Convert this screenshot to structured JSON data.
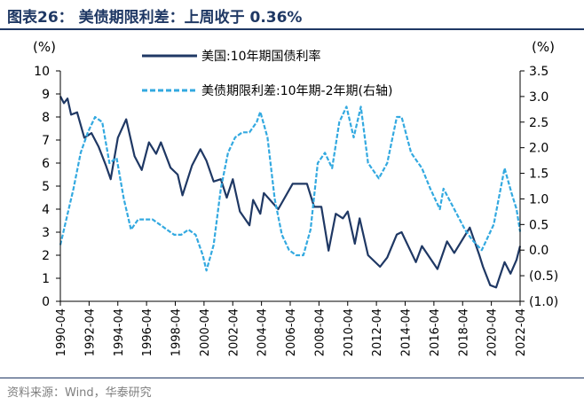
{
  "figure": {
    "title": "图表26： 美债期限利差：上周收于 0.36%",
    "source": "资料来源：Wind，华泰研究"
  },
  "chart_data": {
    "type": "line",
    "left_unit": "(%)",
    "right_unit": "(%)",
    "left_axis": {
      "min": 0,
      "max": 10,
      "ticks": [
        "0",
        "1",
        "2",
        "3",
        "4",
        "5",
        "6",
        "7",
        "8",
        "9",
        "10"
      ]
    },
    "right_axis": {
      "min": -1.0,
      "max": 3.5,
      "ticks": [
        "(1.0)",
        "(0.5)",
        "0.0",
        "0.5",
        "1.0",
        "1.5",
        "2.0",
        "2.5",
        "3.0",
        "3.5"
      ]
    },
    "x_ticks": [
      "1990-04",
      "1992-04",
      "1994-04",
      "1996-04",
      "1998-04",
      "2000-04",
      "2002-04",
      "2004-04",
      "2006-04",
      "2008-04",
      "2010-04",
      "2012-04",
      "2014-04",
      "2016-04",
      "2018-04",
      "2020-04",
      "2022-04"
    ],
    "x_range": [
      "1990-04",
      "2022-04"
    ],
    "legend": "top",
    "series": [
      {
        "name": "美国:10年期国债利率",
        "axis": "left",
        "color": "#1f3864",
        "style": "solid",
        "points": [
          [
            "1990-04",
            8.9
          ],
          [
            "1990-07",
            8.6
          ],
          [
            "1990-10",
            8.8
          ],
          [
            "1991-01",
            8.1
          ],
          [
            "1991-06",
            8.2
          ],
          [
            "1991-12",
            7.1
          ],
          [
            "1992-06",
            7.3
          ],
          [
            "1992-12",
            6.7
          ],
          [
            "1993-06",
            5.9
          ],
          [
            "1993-10",
            5.3
          ],
          [
            "1994-04",
            7.1
          ],
          [
            "1994-11",
            7.9
          ],
          [
            "1995-06",
            6.3
          ],
          [
            "1995-12",
            5.7
          ],
          [
            "1996-06",
            6.9
          ],
          [
            "1996-12",
            6.4
          ],
          [
            "1997-04",
            6.9
          ],
          [
            "1997-12",
            5.8
          ],
          [
            "1998-06",
            5.5
          ],
          [
            "1998-10",
            4.6
          ],
          [
            "1999-06",
            5.9
          ],
          [
            "2000-01",
            6.6
          ],
          [
            "2000-06",
            6.1
          ],
          [
            "2000-12",
            5.2
          ],
          [
            "2001-06",
            5.3
          ],
          [
            "2001-11",
            4.5
          ],
          [
            "2002-04",
            5.3
          ],
          [
            "2002-10",
            3.9
          ],
          [
            "2003-06",
            3.3
          ],
          [
            "2003-09",
            4.4
          ],
          [
            "2004-03",
            3.8
          ],
          [
            "2004-06",
            4.7
          ],
          [
            "2005-06",
            4.0
          ],
          [
            "2006-06",
            5.1
          ],
          [
            "2007-06",
            5.1
          ],
          [
            "2007-12",
            4.1
          ],
          [
            "2008-06",
            4.1
          ],
          [
            "2008-12",
            2.2
          ],
          [
            "2009-06",
            3.8
          ],
          [
            "2009-12",
            3.6
          ],
          [
            "2010-04",
            3.9
          ],
          [
            "2010-10",
            2.5
          ],
          [
            "2011-02",
            3.6
          ],
          [
            "2011-09",
            2.0
          ],
          [
            "2012-07",
            1.5
          ],
          [
            "2013-01",
            1.9
          ],
          [
            "2013-09",
            2.9
          ],
          [
            "2014-01",
            3.0
          ],
          [
            "2015-01",
            1.7
          ],
          [
            "2015-06",
            2.4
          ],
          [
            "2016-07",
            1.4
          ],
          [
            "2017-03",
            2.6
          ],
          [
            "2017-09",
            2.1
          ],
          [
            "2018-10",
            3.2
          ],
          [
            "2019-06",
            2.0
          ],
          [
            "2019-09",
            1.5
          ],
          [
            "2020-03",
            0.7
          ],
          [
            "2020-08",
            0.6
          ],
          [
            "2021-03",
            1.7
          ],
          [
            "2021-08",
            1.2
          ],
          [
            "2022-01",
            1.8
          ],
          [
            "2022-04",
            2.4
          ]
        ]
      },
      {
        "name": "美债期限利差:10年期-2年期(右轴)",
        "axis": "right",
        "color": "#33a9e0",
        "style": "dashed",
        "points": [
          [
            "1990-04",
            0.1
          ],
          [
            "1990-09",
            0.6
          ],
          [
            "1991-03",
            1.2
          ],
          [
            "1991-09",
            1.9
          ],
          [
            "1992-03",
            2.3
          ],
          [
            "1992-09",
            2.6
          ],
          [
            "1993-03",
            2.5
          ],
          [
            "1993-09",
            1.7
          ],
          [
            "1994-03",
            1.8
          ],
          [
            "1994-09",
            1.0
          ],
          [
            "1995-03",
            0.4
          ],
          [
            "1995-09",
            0.6
          ],
          [
            "1996-03",
            0.6
          ],
          [
            "1996-09",
            0.6
          ],
          [
            "1997-03",
            0.5
          ],
          [
            "1997-09",
            0.4
          ],
          [
            "1998-03",
            0.3
          ],
          [
            "1998-09",
            0.3
          ],
          [
            "1999-03",
            0.4
          ],
          [
            "1999-09",
            0.3
          ],
          [
            "2000-03",
            -0.1
          ],
          [
            "2000-06",
            -0.4
          ],
          [
            "2000-12",
            0.1
          ],
          [
            "2001-06",
            1.2
          ],
          [
            "2001-12",
            1.9
          ],
          [
            "2002-06",
            2.2
          ],
          [
            "2002-12",
            2.3
          ],
          [
            "2003-06",
            2.3
          ],
          [
            "2003-12",
            2.5
          ],
          [
            "2004-03",
            2.7
          ],
          [
            "2004-09",
            2.2
          ],
          [
            "2005-03",
            1.0
          ],
          [
            "2005-09",
            0.3
          ],
          [
            "2006-03",
            0.0
          ],
          [
            "2006-09",
            -0.1
          ],
          [
            "2007-03",
            -0.1
          ],
          [
            "2007-09",
            0.4
          ],
          [
            "2008-03",
            1.7
          ],
          [
            "2008-09",
            1.9
          ],
          [
            "2009-03",
            1.6
          ],
          [
            "2009-09",
            2.5
          ],
          [
            "2010-03",
            2.8
          ],
          [
            "2010-09",
            2.2
          ],
          [
            "2011-03",
            2.8
          ],
          [
            "2011-09",
            1.7
          ],
          [
            "2012-06",
            1.4
          ],
          [
            "2013-01",
            1.7
          ],
          [
            "2013-09",
            2.6
          ],
          [
            "2014-01",
            2.6
          ],
          [
            "2014-09",
            1.9
          ],
          [
            "2015-06",
            1.6
          ],
          [
            "2016-01",
            1.2
          ],
          [
            "2016-09",
            0.8
          ],
          [
            "2016-12",
            1.2
          ],
          [
            "2017-09",
            0.8
          ],
          [
            "2018-06",
            0.4
          ],
          [
            "2018-12",
            0.2
          ],
          [
            "2019-08",
            0.0
          ],
          [
            "2019-12",
            0.2
          ],
          [
            "2020-06",
            0.5
          ],
          [
            "2021-03",
            1.6
          ],
          [
            "2021-09",
            1.1
          ],
          [
            "2022-01",
            0.8
          ],
          [
            "2022-04",
            0.36
          ]
        ]
      }
    ]
  }
}
